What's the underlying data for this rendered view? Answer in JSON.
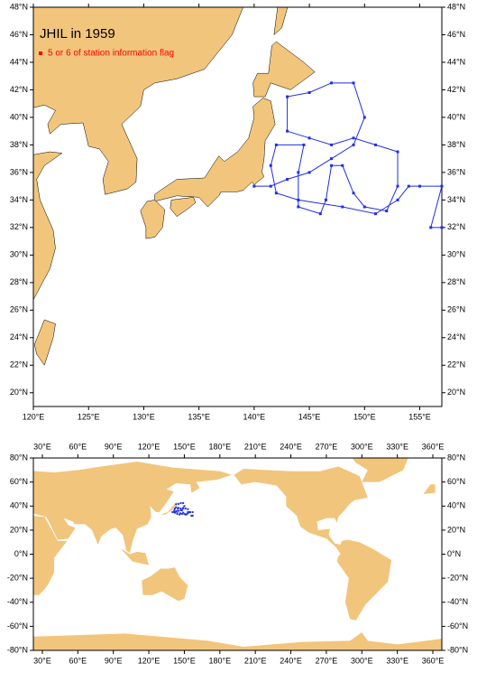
{
  "title": "JHIL in 1959",
  "legend": "5 or 6 of station information flag",
  "marker_color": "#ff0000",
  "track_color": "#1f2ee8",
  "regional_map": {
    "xlim": [
      120,
      157
    ],
    "ylim": [
      19,
      48
    ],
    "xticks": [
      {
        "value": 120,
        "label": "120°E"
      },
      {
        "value": 125,
        "label": "125°E"
      },
      {
        "value": 130,
        "label": "130°E"
      },
      {
        "value": 135,
        "label": "135°E"
      },
      {
        "value": 140,
        "label": "140°E"
      },
      {
        "value": 145,
        "label": "145°E"
      },
      {
        "value": 150,
        "label": "150°E"
      },
      {
        "value": 155,
        "label": "155°E"
      }
    ],
    "yticks": [
      {
        "value": 20,
        "label": "20°N"
      },
      {
        "value": 22,
        "label": "22°N"
      },
      {
        "value": 24,
        "label": "24°N"
      },
      {
        "value": 26,
        "label": "26°N"
      },
      {
        "value": 28,
        "label": "28°N"
      },
      {
        "value": 30,
        "label": "30°N"
      },
      {
        "value": 32,
        "label": "32°N"
      },
      {
        "value": 34,
        "label": "34°N"
      },
      {
        "value": 36,
        "label": "36°N"
      },
      {
        "value": 38,
        "label": "38°N"
      },
      {
        "value": 40,
        "label": "40°N"
      },
      {
        "value": 42,
        "label": "42°N"
      },
      {
        "value": 44,
        "label": "44°N"
      },
      {
        "value": 46,
        "label": "46°N"
      },
      {
        "value": 48,
        "label": "48°N"
      }
    ]
  },
  "world_map": {
    "xlim": [
      22.4,
      367.6
    ],
    "ylim": [
      -80,
      80
    ],
    "xticks": [
      {
        "value": 30,
        "label": "30°E"
      },
      {
        "value": 60,
        "label": "60°E"
      },
      {
        "value": 90,
        "label": "90°E"
      },
      {
        "value": 120,
        "label": "120°E"
      },
      {
        "value": 150,
        "label": "150°E"
      },
      {
        "value": 180,
        "label": "180°E"
      },
      {
        "value": 210,
        "label": "210°E"
      },
      {
        "value": 240,
        "label": "240°E"
      },
      {
        "value": 270,
        "label": "270°E"
      },
      {
        "value": 300,
        "label": "300°E"
      },
      {
        "value": 330,
        "label": "330°E"
      },
      {
        "value": 360,
        "label": "360°E"
      }
    ],
    "yticks": [
      {
        "value": -80,
        "label": "-80°N"
      },
      {
        "value": -60,
        "label": "-60°N"
      },
      {
        "value": -40,
        "label": "-40°N"
      },
      {
        "value": -20,
        "label": "-20°N"
      },
      {
        "value": 0,
        "label": "0°N"
      },
      {
        "value": 20,
        "label": "20°N"
      },
      {
        "value": 40,
        "label": "40°N"
      },
      {
        "value": 60,
        "label": "60°N"
      },
      {
        "value": 80,
        "label": "80°N"
      }
    ]
  },
  "track": {
    "lon": [
      140,
      141.5,
      143,
      145,
      147,
      149,
      150,
      149,
      147,
      145,
      143,
      143,
      145,
      147,
      149,
      151,
      153,
      153,
      152,
      150,
      149,
      148,
      147,
      146.5,
      146,
      144,
      144,
      144.5,
      142,
      141.5,
      142,
      144,
      148,
      151,
      153,
      154,
      155,
      157,
      156,
      157
    ],
    "lat": [
      35,
      35,
      35.5,
      36,
      37,
      38,
      40,
      42.5,
      42.5,
      41.8,
      41.5,
      39,
      38.5,
      38,
      38.5,
      38,
      37.5,
      35,
      33.2,
      33.5,
      34.5,
      36.5,
      36.5,
      34,
      33,
      33.5,
      36,
      38,
      38,
      36.5,
      34.5,
      34,
      33.5,
      33,
      34,
      35,
      35,
      35,
      32,
      32
    ]
  }
}
